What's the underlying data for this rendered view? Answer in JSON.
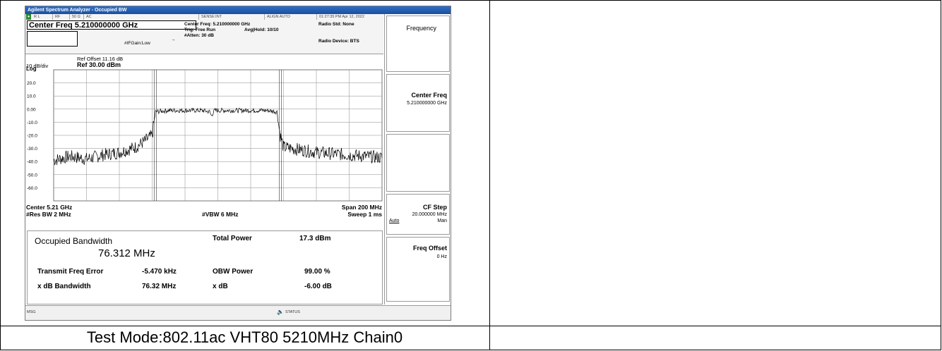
{
  "window": {
    "title": "Agilent Spectrum Analyzer - Occupied BW"
  },
  "status_row": {
    "rl": "R L",
    "rf": "RF",
    "impedance": "50 Ω",
    "coupling": "AC",
    "sense": "SENSE:INT",
    "align": "ALIGN AUTO",
    "timestamp": "01:27:35 PM Apr 12, 2022"
  },
  "header": {
    "center_freq_label": "Center Freq 5.210000000 GHz",
    "center_freq_detail": "Center Freq: 5.210000000 GHz",
    "trig": "Trig: Free Run",
    "avg_hold": "Avg|Hold: 10/10",
    "ifgain": "#IFGain:Low",
    "atten": "#Atten: 30 dB",
    "radio_std": "Radio Std: None",
    "radio_device": "Radio Device: BTS"
  },
  "reference": {
    "ref_offset": "Ref Offset 11.16 dB",
    "scale": "10 dB/div",
    "ref_level": "Ref 30.00 dBm",
    "log": "Log"
  },
  "chart_data": {
    "type": "line",
    "title": "",
    "xlabel": "",
    "ylabel": "",
    "x_unit": "GHz",
    "xlim": [
      5.11,
      5.31
    ],
    "ylim": [
      -70,
      30
    ],
    "y_ticks": [
      "20.0",
      "10.0",
      "0.00",
      "-10.0",
      "-20.0",
      "-30.0",
      "-40.0",
      "-50.0",
      "-60.0"
    ],
    "y_tick_values": [
      20,
      10,
      0,
      -10,
      -20,
      -30,
      -40,
      -50,
      -60
    ],
    "markers_x": [
      5.171844,
      5.248156
    ],
    "grid": true,
    "series": [
      {
        "x": [
          5.11,
          5.12,
          5.13,
          5.14,
          5.15,
          5.16,
          5.166,
          5.17,
          5.172,
          5.18,
          5.19,
          5.2,
          5.205,
          5.206,
          5.208,
          5.212,
          5.214,
          5.216,
          5.23,
          5.24,
          5.246,
          5.248,
          5.25,
          5.26,
          5.27,
          5.28,
          5.29,
          5.3,
          5.31
        ],
        "y": [
          -39,
          -36,
          -38,
          -35,
          -33,
          -29,
          -24,
          -20,
          -2,
          -1,
          -1,
          -1,
          -2,
          -5,
          -1,
          -1,
          -1,
          -1,
          -1,
          -1,
          -2,
          -20,
          -29,
          -31,
          -33,
          -34,
          -35,
          -36,
          -37
        ]
      }
    ]
  },
  "plot_labels": {
    "center": "Center  5.21 GHz",
    "res_bw": "#Res BW  2 MHz",
    "vbw": "#VBW  6 MHz",
    "span": "Span 200 MHz",
    "sweep": "Sweep  1 ms"
  },
  "results": {
    "obw_label": "Occupied Bandwidth",
    "obw_value": "76.312 MHz",
    "total_power_label": "Total Power",
    "total_power_value": "17.3 dBm",
    "tfe_label": "Transmit Freq Error",
    "tfe_value": "-5.470 kHz",
    "obw_power_label": "OBW Power",
    "obw_power_value": "99.00 %",
    "xdb_bw_label": "x dB Bandwidth",
    "xdb_bw_value": "76.32 MHz",
    "xdb_label": "x dB",
    "xdb_value": "-6.00 dB"
  },
  "softkeys": {
    "menu_title": "Frequency",
    "center_freq_title": "Center Freq",
    "center_freq_value": "5.210000000 GHz",
    "cf_step_title": "CF Step",
    "cf_step_value": "20.000000 MHz",
    "cf_step_auto": "Auto",
    "cf_step_man": "Man",
    "freq_offset_title": "Freq Offset",
    "freq_offset_value": "0 Hz"
  },
  "msgbar": {
    "msg": "MSG",
    "status": "STATUS"
  },
  "caption": "Test Mode:802.11ac VHT80 5210MHz Chain0"
}
